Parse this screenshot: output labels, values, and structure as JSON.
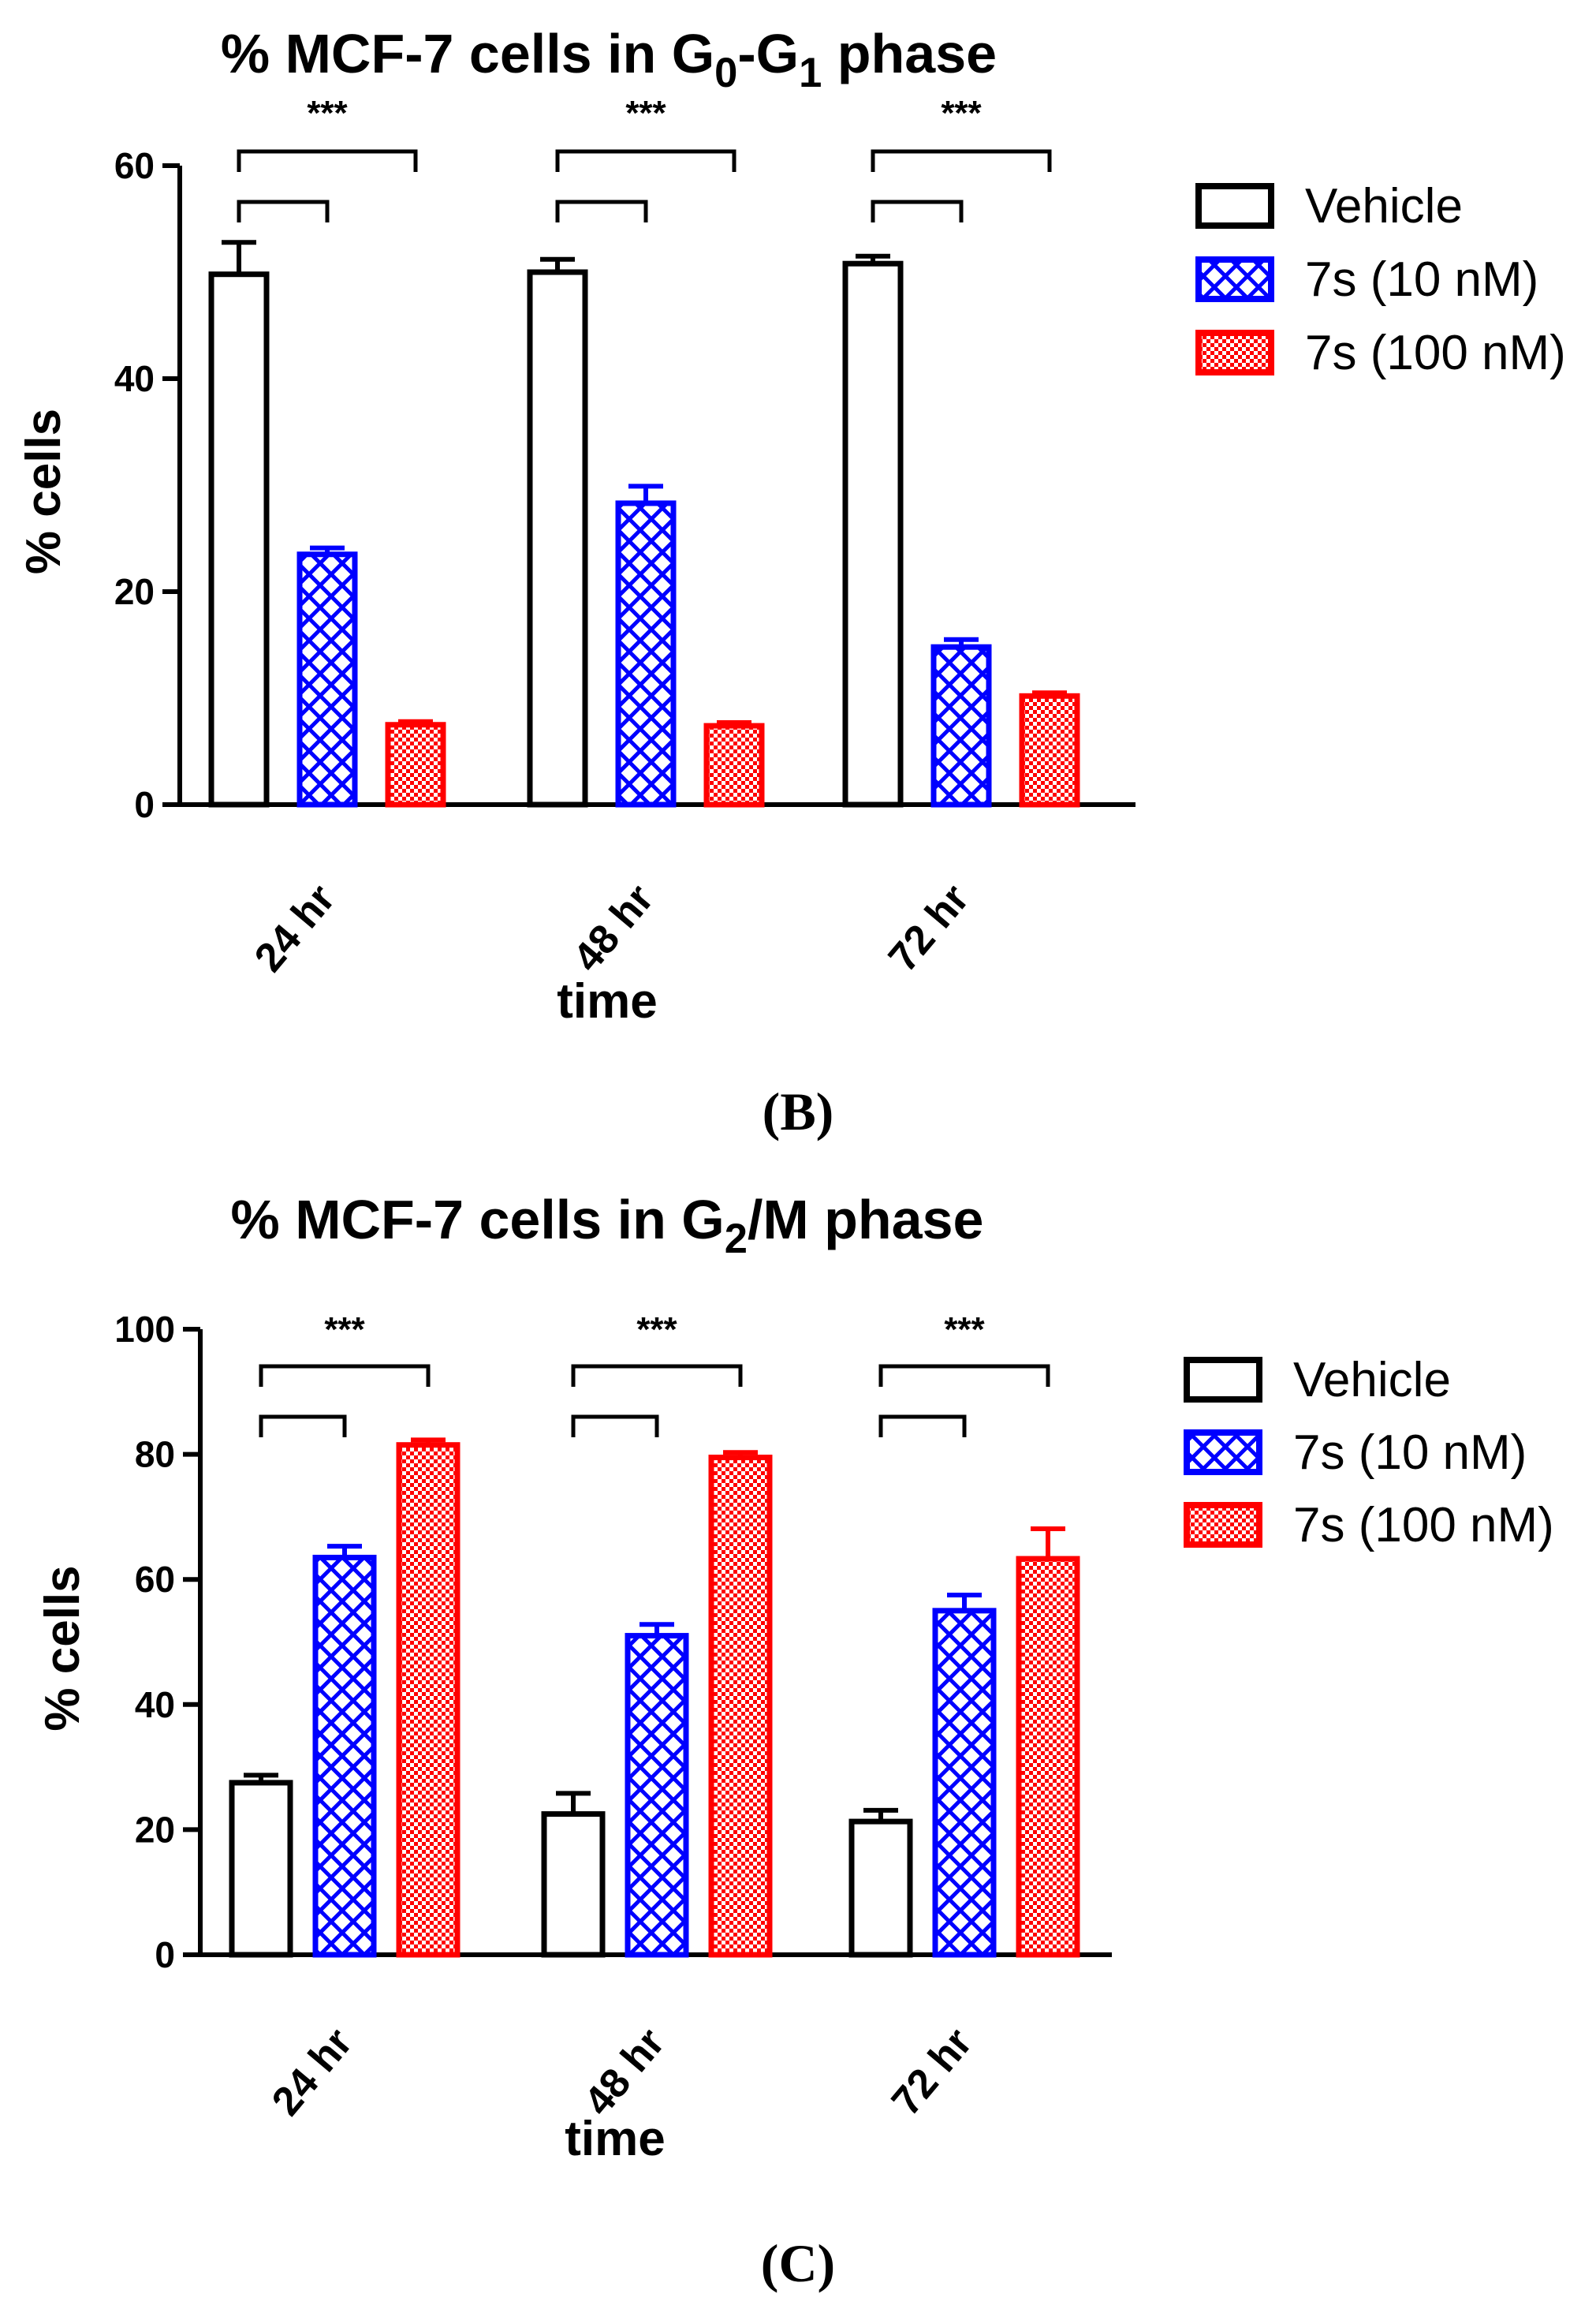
{
  "chart_data": [
    {
      "type": "bar",
      "title_parts": [
        "% MCF-7 cells in G",
        "0",
        "-G",
        "1",
        " phase"
      ],
      "panel_label_parts": [
        "(",
        "B",
        ")"
      ],
      "xlabel": "time",
      "ylabel": "% cells",
      "ylim": [
        0,
        60
      ],
      "yticks": [
        "0",
        "20",
        "40",
        "60"
      ],
      "categories": [
        "24 hr",
        "48 hr",
        "72 hr"
      ],
      "series": [
        {
          "name": "Vehicle",
          "values": [
            49.8,
            50.0,
            50.8
          ],
          "errors": [
            3.0,
            1.2,
            0.7
          ],
          "color": "#000000",
          "pattern": "none"
        },
        {
          "name": "7s (10 nM)",
          "values": [
            23.5,
            28.3,
            14.8
          ],
          "errors": [
            0.6,
            1.6,
            0.7
          ],
          "color": "#0000ff",
          "pattern": "crosshatch"
        },
        {
          "name": "7s (100 nM)",
          "values": [
            7.5,
            7.4,
            10.2
          ],
          "errors": [
            0.3,
            0.3,
            0.3
          ],
          "color": "#ff0000",
          "pattern": "checker"
        }
      ],
      "significance": [
        "***",
        "***",
        "***"
      ],
      "legend": "right"
    },
    {
      "type": "bar",
      "title_parts": [
        "% MCF-7 cells in G",
        "2",
        "/M phase"
      ],
      "panel_label_parts": [
        "(",
        "C",
        ")"
      ],
      "xlabel": "time",
      "ylabel": "% cells",
      "ylim": [
        0,
        100
      ],
      "yticks": [
        "0",
        "20",
        "40",
        "60",
        "80",
        "100"
      ],
      "categories": [
        "24 hr",
        "48 hr",
        "72 hr"
      ],
      "series": [
        {
          "name": "Vehicle",
          "values": [
            27.5,
            22.5,
            21.3
          ],
          "errors": [
            1.2,
            3.3,
            1.8
          ],
          "color": "#000000",
          "pattern": "none"
        },
        {
          "name": "7s (10 nM)",
          "values": [
            63.5,
            51.0,
            55.0
          ],
          "errors": [
            1.8,
            1.8,
            2.5
          ],
          "color": "#0000ff",
          "pattern": "crosshatch"
        },
        {
          "name": "7s (100 nM)",
          "values": [
            81.5,
            79.5,
            63.3
          ],
          "errors": [
            0.8,
            0.8,
            4.8
          ],
          "color": "#ff0000",
          "pattern": "checker"
        }
      ],
      "significance": [
        "***",
        "***",
        "***"
      ],
      "legend": "right"
    }
  ]
}
